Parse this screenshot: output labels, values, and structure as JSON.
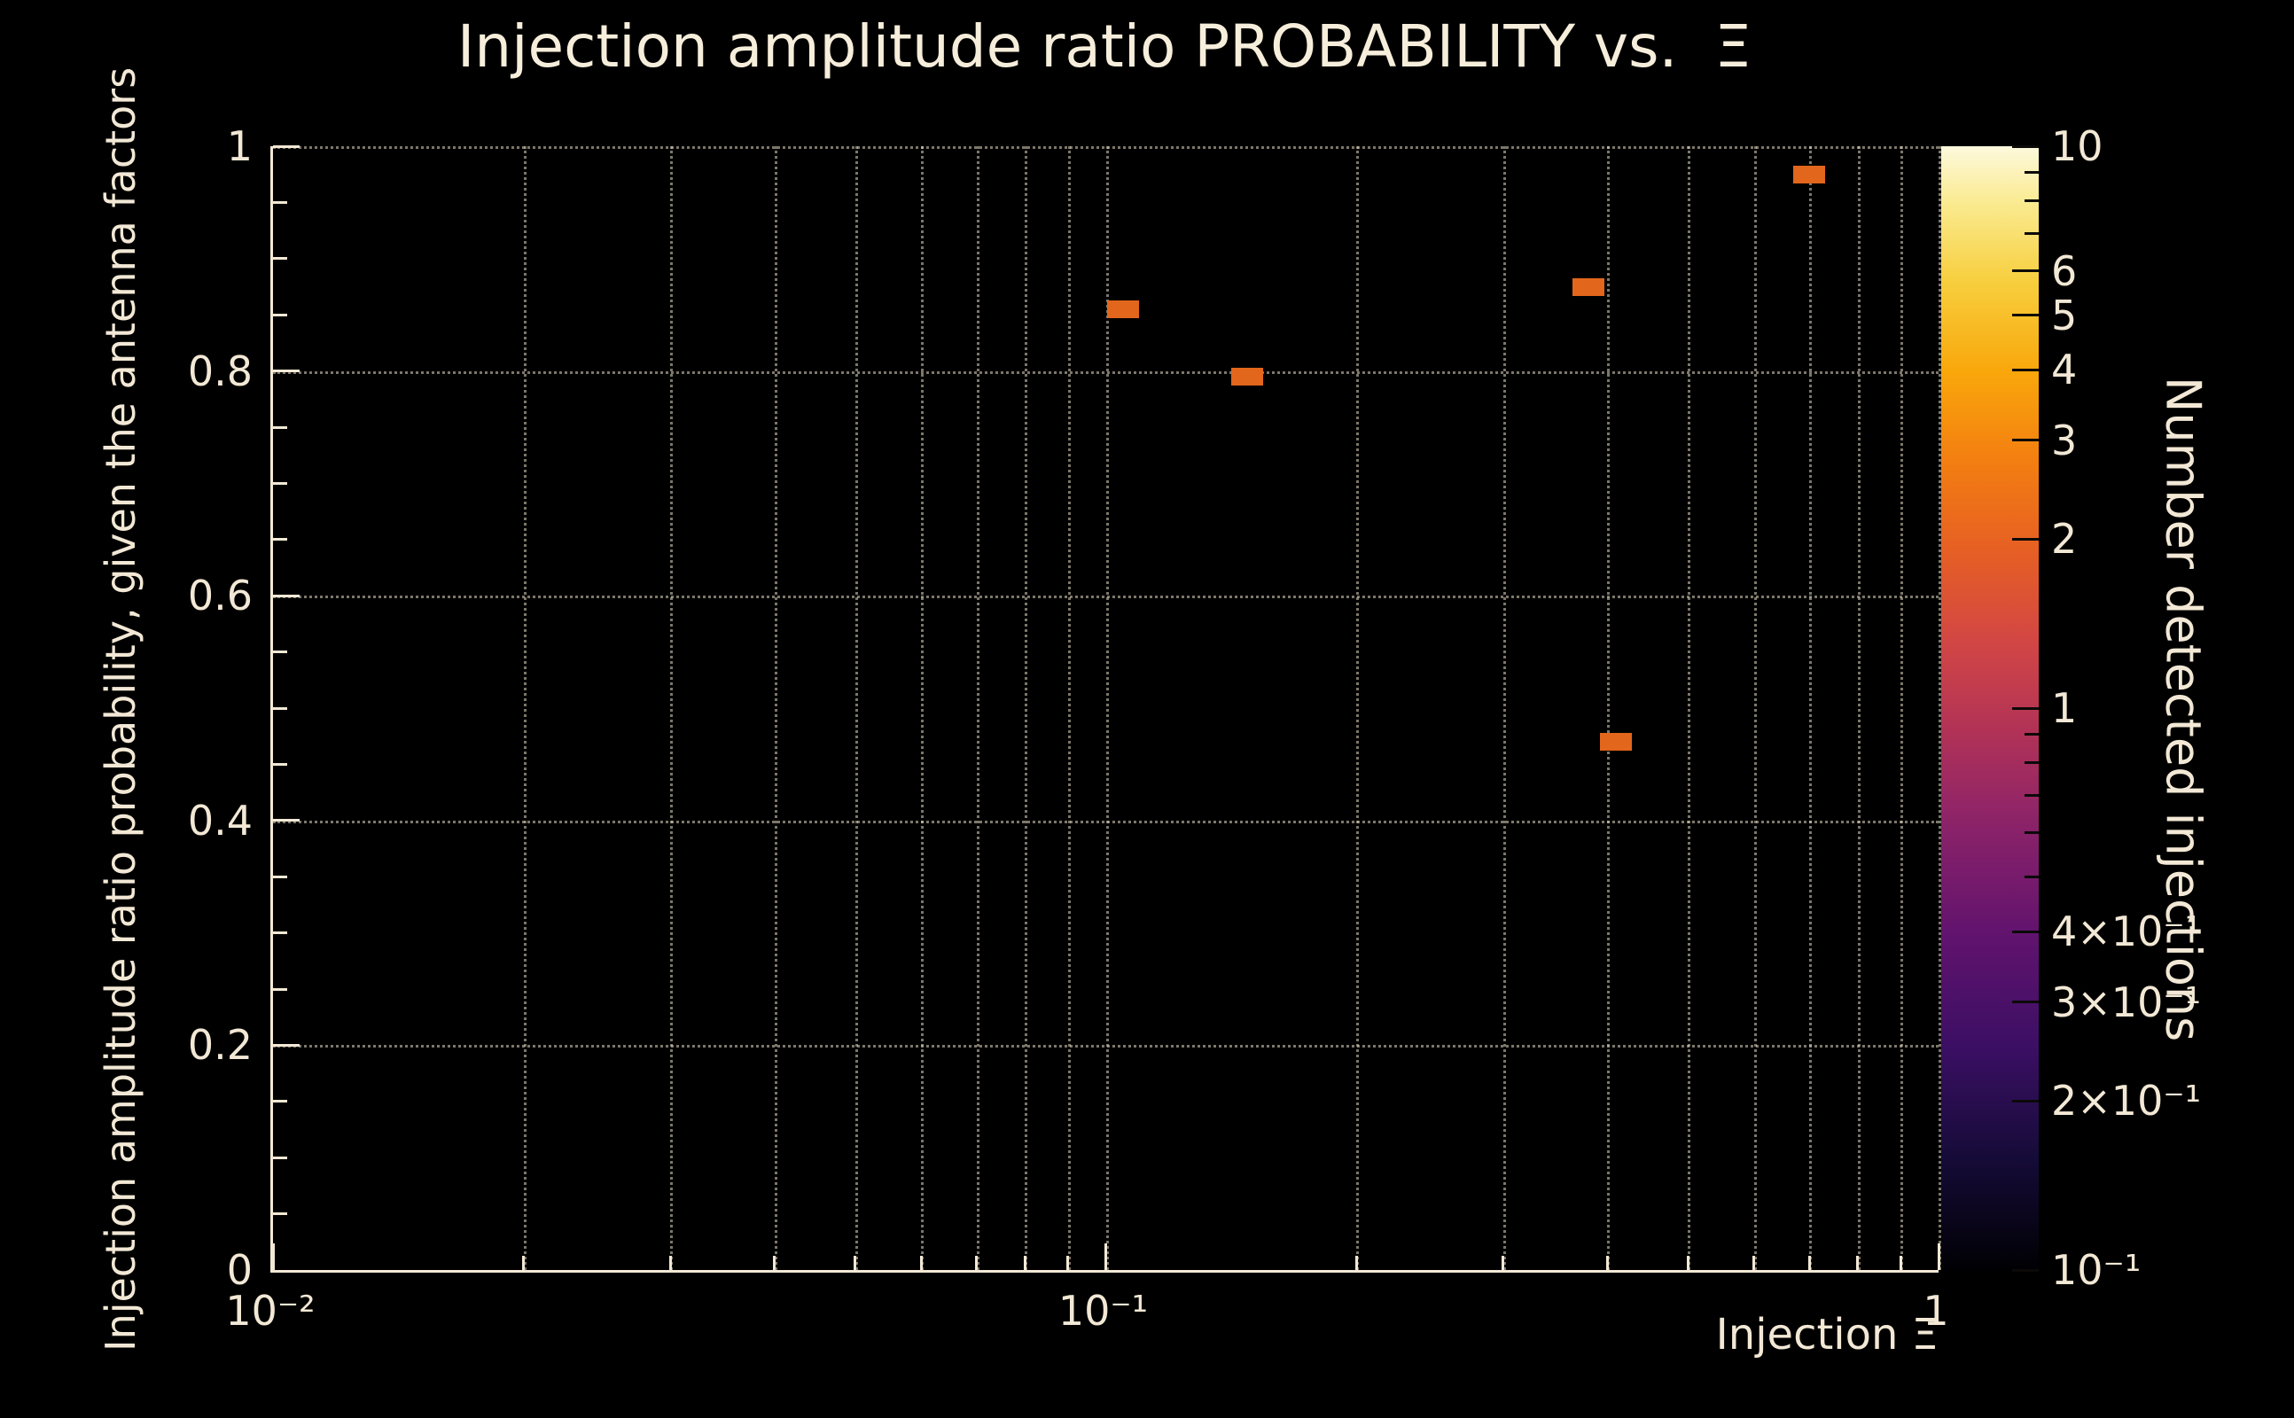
{
  "title": "Injection amplitude ratio PROBABILITY vs.  Ξ",
  "colors": {
    "background": "#000000",
    "text": "#f2e8d5",
    "grid": "#e1d8c1",
    "axis": "#f2e8d5",
    "bin": "#e2661c"
  },
  "axes": {
    "x": {
      "label": "Injection Ξ",
      "scale": "log",
      "ticks": [
        {
          "v": 0.01,
          "label": "10⁻²"
        },
        {
          "v": 0.1,
          "label": "10⁻¹"
        },
        {
          "v": 1,
          "label": "1"
        }
      ]
    },
    "y": {
      "label": "Injection amplitude ratio probability, given the antenna factors",
      "scale": "linear",
      "ticks": [
        {
          "v": 0,
          "label": "0"
        },
        {
          "v": 0.2,
          "label": "0.2"
        },
        {
          "v": 0.4,
          "label": "0.4"
        },
        {
          "v": 0.6,
          "label": "0.6"
        },
        {
          "v": 0.8,
          "label": "0.8"
        },
        {
          "v": 1,
          "label": "1"
        }
      ]
    },
    "z": {
      "label": "Number detected injections",
      "scale": "log",
      "ticks": [
        {
          "v": 10,
          "label": "10"
        },
        {
          "v": 6,
          "label": "6"
        },
        {
          "v": 5,
          "label": "5"
        },
        {
          "v": 4,
          "label": "4"
        },
        {
          "v": 3,
          "label": "3"
        },
        {
          "v": 2,
          "label": "2"
        },
        {
          "v": 1,
          "label": "1"
        },
        {
          "v": 0.4,
          "label": "4×10⁻¹"
        },
        {
          "v": 0.3,
          "label": "3×10⁻¹"
        },
        {
          "v": 0.2,
          "label": "2×10⁻¹"
        },
        {
          "v": 0.1,
          "label": "10⁻¹"
        }
      ]
    }
  },
  "chart_data": {
    "type": "heatmap",
    "title": "Injection amplitude ratio PROBABILITY vs.  Ξ",
    "xlabel": "Injection Ξ",
    "ylabel": "Injection amplitude ratio probability, given the antenna factors",
    "zlabel": "Number detected injections",
    "xscale": "log",
    "xlim": [
      0.01,
      1
    ],
    "yscale": "linear",
    "ylim": [
      0,
      1
    ],
    "zscale": "log",
    "zlim": [
      0.1,
      10
    ],
    "grid": true,
    "points": [
      {
        "x": 0.105,
        "y": 0.855,
        "z": 1
      },
      {
        "x": 0.148,
        "y": 0.795,
        "z": 1
      },
      {
        "x": 0.38,
        "y": 0.875,
        "z": 1
      },
      {
        "x": 0.41,
        "y": 0.47,
        "z": 1
      },
      {
        "x": 0.7,
        "y": 0.975,
        "z": 1
      }
    ],
    "palette": {
      "name": "inferno-like",
      "stops": [
        {
          "t": 0.0,
          "color": "#000002"
        },
        {
          "t": 0.1,
          "color": "#150b37"
        },
        {
          "t": 0.2,
          "color": "#3b0f64"
        },
        {
          "t": 0.3,
          "color": "#61136e"
        },
        {
          "t": 0.4,
          "color": "#8c2369"
        },
        {
          "t": 0.48,
          "color": "#b13257"
        },
        {
          "t": 0.56,
          "color": "#d24644"
        },
        {
          "t": 0.64,
          "color": "#e65f24"
        },
        {
          "t": 0.72,
          "color": "#f37e11"
        },
        {
          "t": 0.8,
          "color": "#f9a70b"
        },
        {
          "t": 0.88,
          "color": "#f7cf3e"
        },
        {
          "t": 0.95,
          "color": "#faeb91"
        },
        {
          "t": 1.0,
          "color": "#fdf9dd"
        }
      ]
    }
  }
}
